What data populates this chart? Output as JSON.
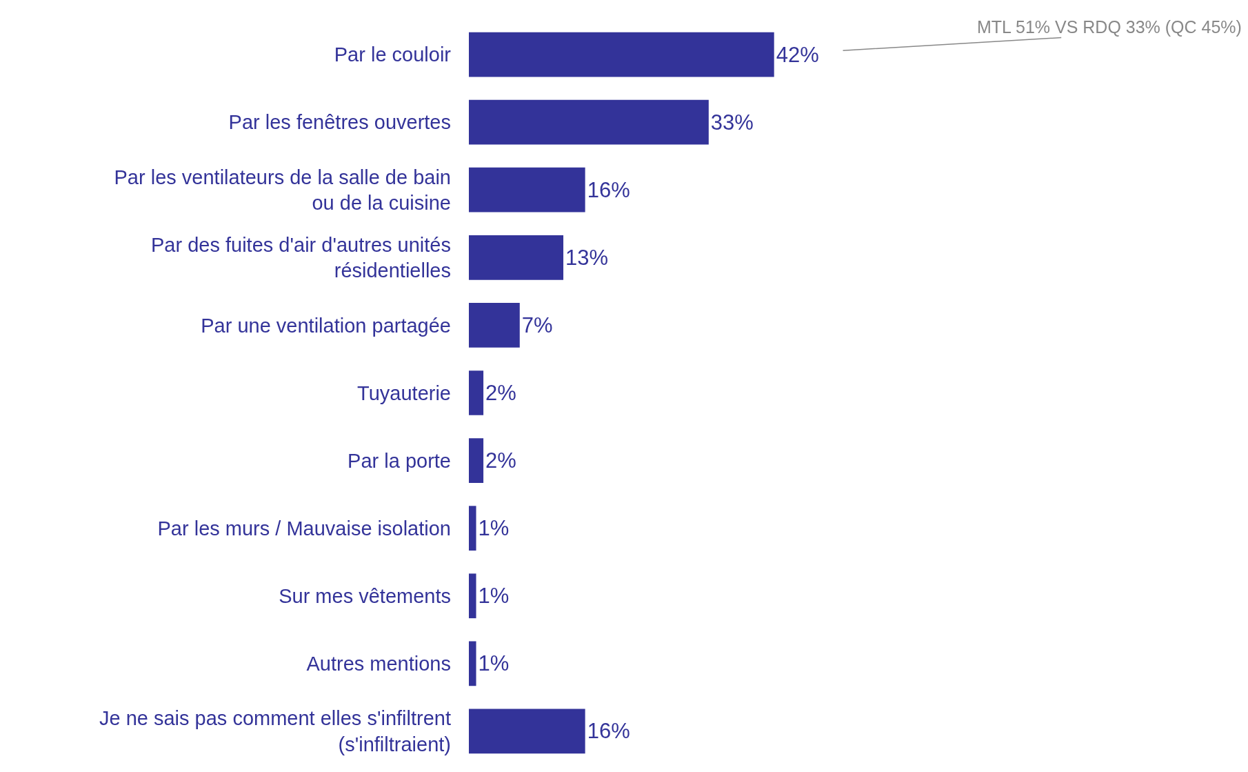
{
  "chart_data": {
    "type": "bar",
    "orientation": "horizontal",
    "categories": [
      "Par le couloir",
      "Par les fenêtres ouvertes",
      "Par les ventilateurs de la salle de bain ou de la cuisine",
      "Par des fuites d'air d'autres unités résidentielles",
      "Par une ventilation partagée",
      "Tuyauterie",
      "Par la porte",
      "Par les murs / Mauvaise isolation",
      "Sur mes vêtements",
      "Autres mentions",
      "Je ne sais pas comment elles s'infiltrent (s'infiltraient)"
    ],
    "values": [
      42,
      33,
      16,
      13,
      7,
      2,
      2,
      1,
      1,
      1,
      16
    ],
    "color": "#333399",
    "data_labels": true,
    "value_labels": [
      "42%",
      "33%",
      "16%",
      "13%",
      "7%",
      "2%",
      "2%",
      "1%",
      "1%",
      "1%",
      "16%"
    ],
    "tick_labels": "y",
    "annotations": [
      {
        "text": "MTL 51% VS RDQ 33% (QC 45%)",
        "x": 42,
        "y": "Par le couloir"
      }
    ]
  }
}
